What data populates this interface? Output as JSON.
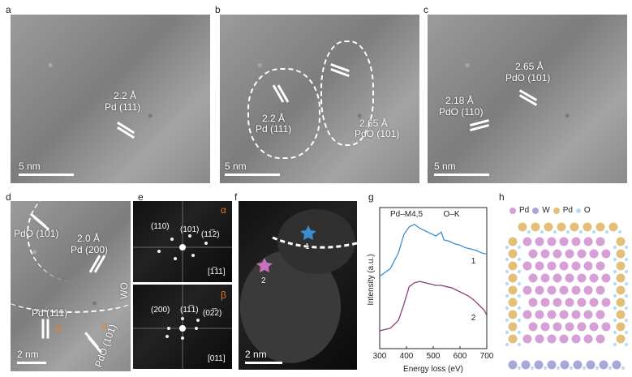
{
  "panels": {
    "a": {
      "letter": "a",
      "d": "2.2 Å",
      "plane": "Pd (111)",
      "scale": "5 nm"
    },
    "b": {
      "letter": "b",
      "d1": "2.2 Å",
      "plane1": "Pd (111)",
      "d2": "2.65 Å",
      "plane2": "PdO (101)",
      "scale": "5 nm"
    },
    "c": {
      "letter": "c",
      "d1": "2.65 Å",
      "plane1": "PdO (101)",
      "d2": "2.18 Å",
      "plane2": "PdO (110)",
      "scale": "5 nm"
    },
    "d": {
      "letter": "d",
      "label1": "PdO (101)",
      "d2": "2.0 Å",
      "label2": "Pd (200)",
      "label3": "Pd (111)",
      "label4": "PdO (101)",
      "label5": "WO",
      "greek1": "β",
      "greek2": "α",
      "scale": "2 nm"
    },
    "e": {
      "letter": "e",
      "top": {
        "greek": "α",
        "labels": [
          "(110)",
          "(101)",
          "(11̅2)"
        ],
        "zone": "[1̅11]"
      },
      "bottom": {
        "greek": "β",
        "labels": [
          "(200)",
          "(11̅1)",
          "(02̅2)"
        ],
        "zone": "[011]"
      }
    },
    "f": {
      "letter": "f",
      "scale": "2 nm",
      "pt1": "1",
      "pt2": "2"
    },
    "g": {
      "letter": "g"
    },
    "h": {
      "letter": "h",
      "legend": [
        {
          "label": "Pd",
          "color": "#d6a0d6"
        },
        {
          "label": "W",
          "color": "#a8a8d8"
        },
        {
          "label": "Pd",
          "color": "#e2c07a"
        },
        {
          "label": "O",
          "color": "#b9dcf0"
        }
      ]
    }
  },
  "chart_data": {
    "type": "line",
    "xlabel": "Energy loss (eV)",
    "ylabel": "Intensity (a.u.)",
    "xlim": [
      300,
      700
    ],
    "xticks": [
      300,
      400,
      500,
      600,
      700
    ],
    "annotations": [
      {
        "text": "Pd–M4,5",
        "x": 400
      },
      {
        "text": "O–K",
        "x": 532
      }
    ],
    "series": [
      {
        "name": "1",
        "color": "#3b8fd1",
        "x": [
          300,
          340,
          370,
          390,
          410,
          430,
          450,
          470,
          490,
          510,
          530,
          540,
          560,
          580,
          600,
          620,
          640,
          660,
          680,
          700
        ],
        "y": [
          0.52,
          0.58,
          0.7,
          0.84,
          0.9,
          0.92,
          0.89,
          0.87,
          0.85,
          0.83,
          0.86,
          0.8,
          0.79,
          0.77,
          0.76,
          0.74,
          0.73,
          0.72,
          0.7,
          0.69
        ]
      },
      {
        "name": "2",
        "color": "#8a3e79",
        "x": [
          300,
          340,
          370,
          390,
          410,
          430,
          450,
          470,
          490,
          510,
          530,
          550,
          570,
          590,
          610,
          630,
          650,
          670,
          690,
          700
        ],
        "y": [
          0.1,
          0.12,
          0.18,
          0.3,
          0.44,
          0.47,
          0.48,
          0.47,
          0.46,
          0.45,
          0.45,
          0.44,
          0.43,
          0.41,
          0.39,
          0.37,
          0.34,
          0.3,
          0.26,
          0.22
        ]
      }
    ]
  }
}
